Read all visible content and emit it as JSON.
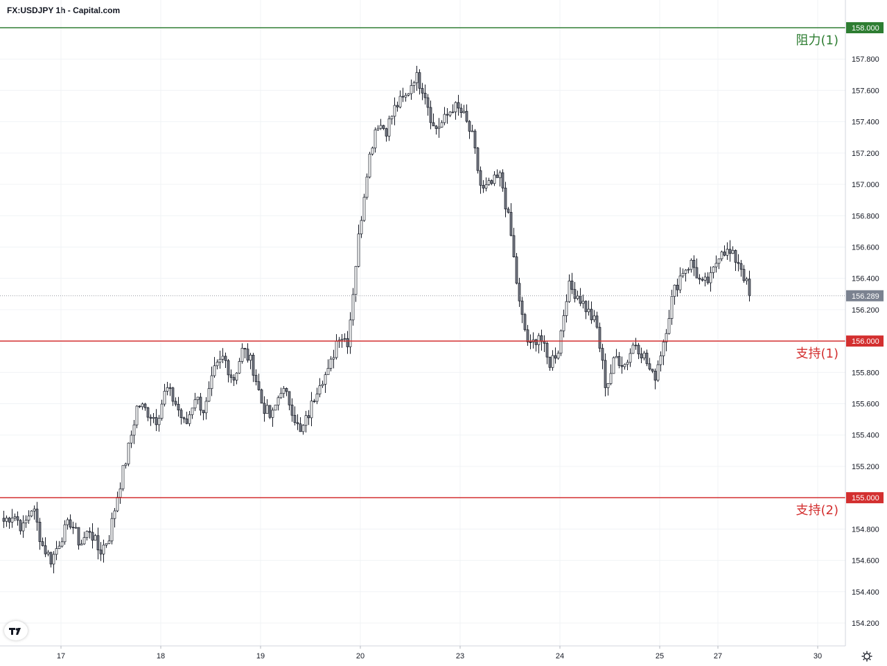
{
  "header": {
    "title": "FX:USDJPY 1h - Capital.com"
  },
  "colors": {
    "resistance": "#2e7d32",
    "support": "#d32f2f",
    "last_price_tag": "#7b8290",
    "grid": "#f0f3f6",
    "candle_up_fill": "#ffffff",
    "candle_down_fill": "#787b86",
    "candle_border": "#131722"
  },
  "icons": {
    "logo": "tradingview-logo-icon",
    "settings": "gear-icon"
  },
  "chart_data": {
    "type": "candlestick",
    "title": "FX:USDJPY 1h - Capital.com",
    "ylim": [
      154.1,
      158.1
    ],
    "grid": true,
    "y_ticks": [
      "154.200",
      "154.400",
      "154.600",
      "154.800",
      "155.000",
      "155.200",
      "155.400",
      "155.600",
      "155.800",
      "156.000",
      "156.200",
      "156.400",
      "156.600",
      "156.800",
      "157.000",
      "157.200",
      "157.400",
      "157.600",
      "157.800",
      "158.000"
    ],
    "x_ticks": [
      "17",
      "18",
      "19",
      "20",
      "23",
      "24",
      "25",
      "27",
      "30"
    ],
    "last_price": "156.289",
    "levels": [
      {
        "label": "阻力(1)",
        "value": 158.0,
        "tag": "158.000",
        "kind": "resistance"
      },
      {
        "label": "支持(1)",
        "value": 156.0,
        "tag": "156.000",
        "kind": "support"
      },
      {
        "label": "支持(2)",
        "value": 155.0,
        "tag": "155.000",
        "kind": "support"
      }
    ],
    "candle_keypoints": [
      154.85,
      154.9,
      154.8,
      154.95,
      154.7,
      154.6,
      154.75,
      154.85,
      154.7,
      154.8,
      154.65,
      154.75,
      155.05,
      155.3,
      155.6,
      155.55,
      155.5,
      155.7,
      155.6,
      155.45,
      155.65,
      155.55,
      155.8,
      155.9,
      155.75,
      155.95,
      155.85,
      155.6,
      155.5,
      155.7,
      155.6,
      155.4,
      155.55,
      155.75,
      155.8,
      156.05,
      156.0,
      156.6,
      157.1,
      157.4,
      157.35,
      157.5,
      157.55,
      157.7,
      157.6,
      157.35,
      157.4,
      157.5,
      157.45,
      157.3,
      156.95,
      157.0,
      157.05,
      156.7,
      156.2,
      155.95,
      156.05,
      155.85,
      155.95,
      156.35,
      156.3,
      156.2,
      156.1,
      155.7,
      155.9,
      155.85,
      156.0,
      155.9,
      155.75,
      156.0,
      156.3,
      156.45,
      156.5,
      156.35,
      156.4,
      156.6,
      156.55,
      156.5,
      156.3
    ]
  }
}
